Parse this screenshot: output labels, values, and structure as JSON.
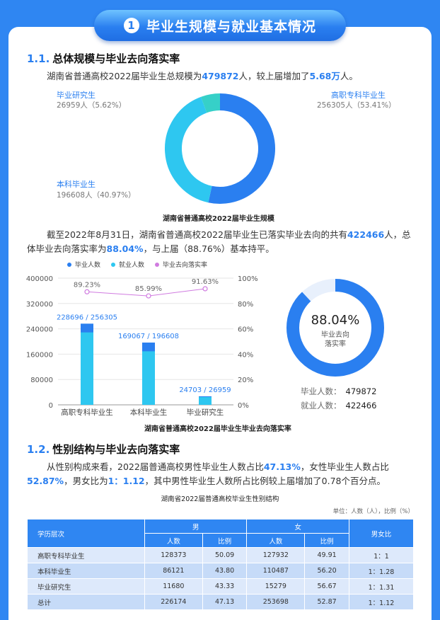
{
  "banner": {
    "number": "1",
    "title": "毕业生规模与就业基本情况"
  },
  "section1": {
    "number": "1.1.",
    "title": "总体规模与毕业去向落实率",
    "para1": {
      "p1": "湖南省普通高校2022届毕业生总规模为",
      "v1": "479872",
      "p2": "人，较上届增加了",
      "v2": "5.68万",
      "p3": "人。"
    },
    "donut": {
      "segments": [
        {
          "name": "高职专科毕业生",
          "value": "256305人（53.41%）",
          "pct": 53.41,
          "color": "#2a7ff0"
        },
        {
          "name": "本科毕业生",
          "value": "196608人（40.97%）",
          "pct": 40.97,
          "color": "#2ec7f0"
        },
        {
          "name": "毕业研究生",
          "value": "26959人（5.62%）",
          "pct": 5.62,
          "color": "#36d0c8"
        }
      ],
      "caption": "湖南省普通高校2022届毕业生规模"
    },
    "para2": {
      "p1": "截至2022年8月31日，湖南省普通高校2022届毕业生已落实毕业去向的共有",
      "v1": "422466",
      "p2": "人，总体毕业去向落实率为",
      "v2": "88.04%",
      "p3": "，与上届（88.76%）基本持平。"
    }
  },
  "chart_data": {
    "type": "bar",
    "categories": [
      "高职专科毕业生",
      "本科毕业生",
      "毕业研究生"
    ],
    "series": [
      {
        "name": "毕业人数",
        "values": [
          256305,
          196608,
          26959
        ],
        "color": "#2a7ff0"
      },
      {
        "name": "就业人数",
        "values": [
          228696,
          169067,
          24703
        ],
        "color": "#2ec7f0"
      },
      {
        "name": "毕业去向落实率",
        "values": [
          89.23,
          85.99,
          91.63
        ],
        "color": "#d07be0"
      }
    ],
    "bar_labels": [
      "228696 / 256305",
      "169067 / 196608",
      "24703 / 26959"
    ],
    "rate_labels": [
      "89.23%",
      "85.99%",
      "91.63%"
    ],
    "y_ticks": [
      "400000",
      "320000",
      "240000",
      "160000",
      "80000",
      "0"
    ],
    "y2_ticks": [
      "100%",
      "80%",
      "60%",
      "40%",
      "20%",
      "0%"
    ],
    "ylim": [
      0,
      400000
    ],
    "y2lim": [
      0,
      100
    ],
    "title": "湖南省普通高校2022届毕业生毕业去向落实率"
  },
  "rate_donut": {
    "value": "88.04%",
    "pct": 88.04,
    "label1": "毕业去向",
    "label2": "落实率",
    "grad_label": "毕业人数：",
    "grad_value": "479872",
    "emp_label": "就业人数：",
    "emp_value": "422466"
  },
  "section2": {
    "number": "1.2.",
    "title": "性别结构与毕业去向落实率",
    "para": {
      "p1": "从性别构成来看，2022届普通高校男性毕业生人数占比",
      "v1": "47.13%",
      "p2": "，女性毕业生人数占比",
      "v2": "52.87%",
      "p3": "，男女比为",
      "v3": "1：1.12",
      "p4": "，其中男性毕业生人数所占比例较上届增加了0.78个百分点。"
    },
    "table_title": "湖南省2022届普通高校毕业生性别结构",
    "unit": "单位：人数（人），比例（%）",
    "headers": {
      "level": "学历层次",
      "male": "男",
      "female": "女",
      "ratio": "男女比",
      "count": "人数",
      "pct": "比例"
    },
    "rows": [
      {
        "level": "高职专科毕业生",
        "m": "128373",
        "mp": "50.09",
        "f": "127932",
        "fp": "49.91",
        "r": "1：1"
      },
      {
        "level": "本科毕业生",
        "m": "86121",
        "mp": "43.80",
        "f": "110487",
        "fp": "56.20",
        "r": "1：1.28"
      },
      {
        "level": "毕业研究生",
        "m": "11680",
        "mp": "43.33",
        "f": "15279",
        "fp": "56.67",
        "r": "1：1.31"
      },
      {
        "level": "总计",
        "m": "226174",
        "mp": "47.13",
        "f": "253698",
        "fp": "52.87",
        "r": "1：1.12"
      }
    ]
  }
}
